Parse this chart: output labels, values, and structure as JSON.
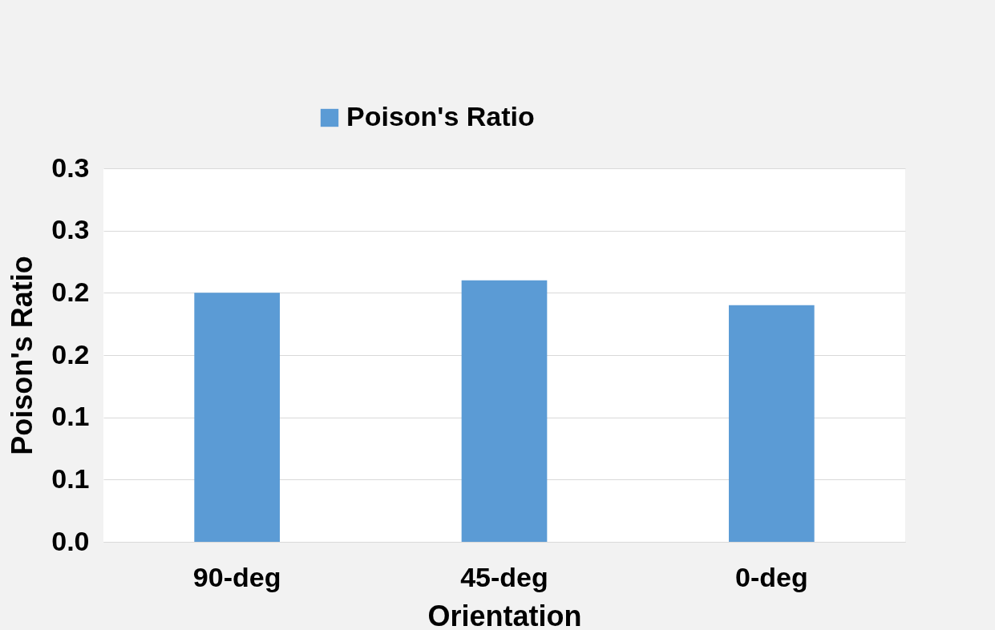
{
  "chart_data": {
    "type": "bar",
    "xlabel": "Orientation",
    "ylabel": "Poison's Ratio",
    "categories": [
      "90-deg",
      "45-deg",
      "0-deg"
    ],
    "series": [
      {
        "name": "Poison's Ratio",
        "color": "#5b9bd5",
        "values": [
          0.2,
          0.21,
          0.19
        ]
      }
    ],
    "ylim": [
      0,
      0.3
    ],
    "yticks": [
      {
        "value": 0,
        "label": "0.0"
      },
      {
        "value": 0.05,
        "label": "0.1"
      },
      {
        "value": 0.1,
        "label": "0.1"
      },
      {
        "value": 0.15,
        "label": "0.2"
      },
      {
        "value": 0.2,
        "label": "0.2"
      },
      {
        "value": 0.25,
        "label": "0.3"
      },
      {
        "value": 0.3,
        "label": "0.3"
      }
    ],
    "grid": "y",
    "legend": "top"
  }
}
